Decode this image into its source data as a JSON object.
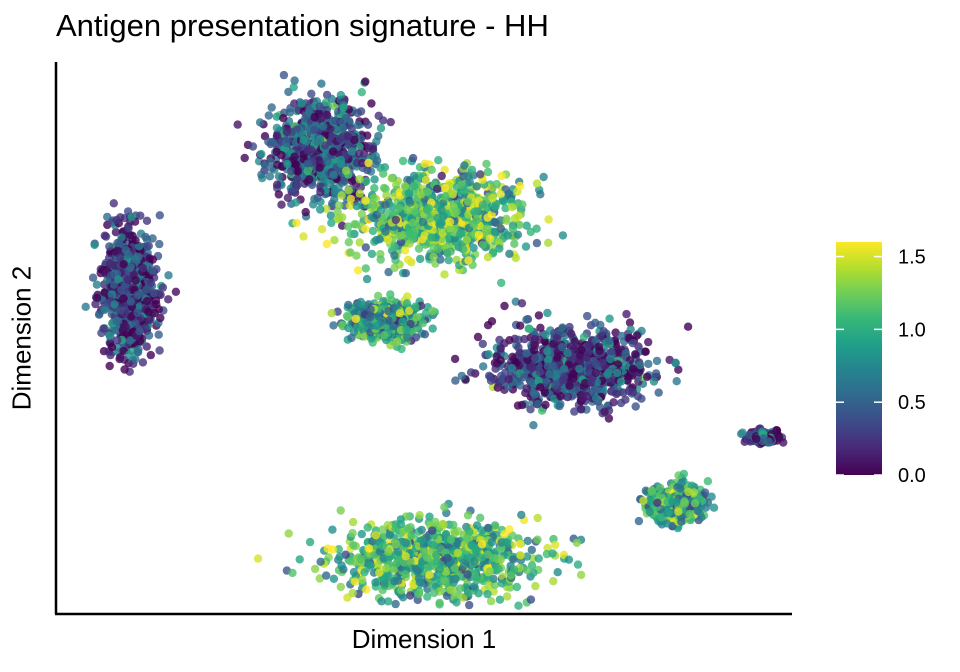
{
  "title": "Antigen presentation signature - HH",
  "xlabel": "Dimension 1",
  "ylabel": "Dimension 2",
  "colors": {
    "viridis": [
      "#440154",
      "#482878",
      "#3e4a89",
      "#31688e",
      "#26828e",
      "#1f9e89",
      "#35b779",
      "#6dcd59",
      "#b4de2c",
      "#fde725"
    ]
  },
  "chart_data": {
    "type": "scatter",
    "title": "Antigen presentation signature - HH",
    "xlabel": "Dimension 1",
    "ylabel": "Dimension 2",
    "x_ticks_shown": false,
    "y_ticks_shown": false,
    "grid": false,
    "legend": {
      "type": "colorbar",
      "position": "right",
      "colormap": "viridis",
      "range": [
        0.0,
        1.6
      ],
      "ticks": [
        0.0,
        0.5,
        1.0,
        1.5
      ],
      "tick_labels": [
        "0.0",
        "0.5",
        "1.0",
        "1.5"
      ]
    },
    "clusters": [
      {
        "id": "c1",
        "center": [
          0.1,
          0.59
        ],
        "spread": [
          0.03,
          0.1
        ],
        "mean_value": 0.25,
        "extent": "elongated vertical blob, far left"
      },
      {
        "id": "c2",
        "center": [
          0.36,
          0.84
        ],
        "spread": [
          0.06,
          0.08
        ],
        "mean_value": 0.35,
        "extent": "upper-left club shape with downward tail"
      },
      {
        "id": "c3",
        "center": [
          0.52,
          0.72
        ],
        "spread": [
          0.1,
          0.07
        ],
        "mean_value": 1.05,
        "extent": "upper-middle branched cluster, mostly high values"
      },
      {
        "id": "c4",
        "center": [
          0.45,
          0.53
        ],
        "spread": [
          0.04,
          0.03
        ],
        "mean_value": 0.85,
        "extent": "small cluster middle"
      },
      {
        "id": "c5",
        "center": [
          0.7,
          0.45
        ],
        "spread": [
          0.1,
          0.06
        ],
        "mean_value": 0.25,
        "extent": "large dark cluster right-center"
      },
      {
        "id": "c6",
        "center": [
          0.96,
          0.32
        ],
        "spread": [
          0.02,
          0.01
        ],
        "mean_value": 0.3,
        "extent": "tiny cluster far right"
      },
      {
        "id": "c7",
        "center": [
          0.84,
          0.2
        ],
        "spread": [
          0.03,
          0.03
        ],
        "mean_value": 0.95,
        "extent": "small cluster lower right"
      },
      {
        "id": "c8",
        "center": [
          0.52,
          0.1
        ],
        "spread": [
          0.12,
          0.06
        ],
        "mean_value": 1.0,
        "extent": "lower crescent cluster, mostly high values"
      }
    ]
  }
}
